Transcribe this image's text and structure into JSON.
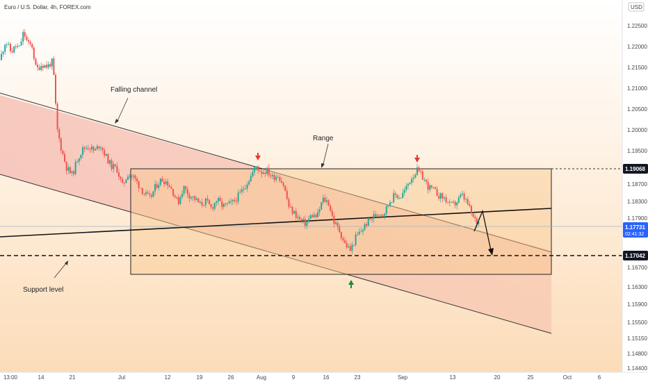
{
  "symbol_title": "Euro / U.S. Dollar, 4h, FOREX.com",
  "currency_badge": "USD",
  "chart_data": {
    "type": "candlestick",
    "x_tick_labels": [
      "13:00",
      "14",
      "21",
      "Jul",
      "12",
      "19",
      "26",
      "Aug",
      "9",
      "16",
      "23",
      "Sep",
      "13",
      "20",
      "25",
      "Oct",
      "6"
    ],
    "y_tick_labels": [
      "1.22500",
      "1.22000",
      "1.21500",
      "1.21000",
      "1.20500",
      "1.20000",
      "1.19500",
      "1.18700",
      "1.18300",
      "1.17900",
      "1.16700",
      "1.16300",
      "1.15900",
      "1.15500",
      "1.15150",
      "1.14800",
      "1.14400"
    ],
    "ylim": [
      1.144,
      1.228
    ],
    "path": [
      [
        0,
        1.2145
      ],
      [
        8,
        1.2188
      ],
      [
        16,
        1.2162
      ],
      [
        22,
        1.2175
      ],
      [
        28,
        1.2172
      ],
      [
        34,
        1.2208
      ],
      [
        40,
        1.218
      ],
      [
        46,
        1.2178
      ],
      [
        52,
        1.2122
      ],
      [
        60,
        1.2135
      ],
      [
        68,
        1.213
      ],
      [
        76,
        1.2142
      ],
      [
        82,
        1.199
      ],
      [
        88,
        1.1945
      ],
      [
        96,
        1.19
      ],
      [
        104,
        1.1885
      ],
      [
        112,
        1.1925
      ],
      [
        120,
        1.1945
      ],
      [
        128,
        1.195
      ],
      [
        136,
        1.1938
      ],
      [
        144,
        1.1955
      ],
      [
        152,
        1.1928
      ],
      [
        160,
        1.1905
      ],
      [
        168,
        1.19
      ],
      [
        176,
        1.186
      ],
      [
        184,
        1.1888
      ],
      [
        192,
        1.188
      ],
      [
        200,
        1.1862
      ],
      [
        208,
        1.1842
      ],
      [
        216,
        1.1832
      ],
      [
        224,
        1.186
      ],
      [
        232,
        1.1875
      ],
      [
        240,
        1.187
      ],
      [
        248,
        1.185
      ],
      [
        256,
        1.1822
      ],
      [
        264,
        1.1858
      ],
      [
        272,
        1.184
      ],
      [
        280,
        1.1832
      ],
      [
        288,
        1.1818
      ],
      [
        296,
        1.1826
      ],
      [
        304,
        1.181
      ],
      [
        312,
        1.183
      ],
      [
        320,
        1.1815
      ],
      [
        328,
        1.1818
      ],
      [
        336,
        1.1824
      ],
      [
        344,
        1.184
      ],
      [
        352,
        1.186
      ],
      [
        360,
        1.188
      ],
      [
        368,
        1.1905
      ],
      [
        376,
        1.1892
      ],
      [
        384,
        1.1895
      ],
      [
        392,
        1.188
      ],
      [
        400,
        1.1885
      ],
      [
        408,
        1.1862
      ],
      [
        416,
        1.181
      ],
      [
        424,
        1.1798
      ],
      [
        432,
        1.1782
      ],
      [
        440,
        1.1775
      ],
      [
        448,
        1.1795
      ],
      [
        456,
        1.179
      ],
      [
        464,
        1.183
      ],
      [
        472,
        1.1825
      ],
      [
        480,
        1.178
      ],
      [
        488,
        1.176
      ],
      [
        496,
        1.173
      ],
      [
        504,
        1.1715
      ],
      [
        512,
        1.1745
      ],
      [
        520,
        1.176
      ],
      [
        528,
        1.1778
      ],
      [
        536,
        1.179
      ],
      [
        544,
        1.18
      ],
      [
        552,
        1.1798
      ],
      [
        560,
        1.1825
      ],
      [
        568,
        1.184
      ],
      [
        576,
        1.1835
      ],
      [
        584,
        1.1855
      ],
      [
        592,
        1.188
      ],
      [
        600,
        1.1895
      ],
      [
        608,
        1.188
      ],
      [
        616,
        1.1858
      ],
      [
        624,
        1.185
      ],
      [
        632,
        1.1838
      ],
      [
        640,
        1.1832
      ],
      [
        648,
        1.1815
      ],
      [
        656,
        1.1822
      ],
      [
        664,
        1.184
      ],
      [
        672,
        1.1822
      ],
      [
        680,
        1.179
      ],
      [
        686,
        1.1778
      ],
      [
        690,
        1.178
      ]
    ],
    "price_labels": {
      "range_top": "1.19068",
      "current": "1.17731",
      "countdown": "02:41:32",
      "support": "1.17042"
    }
  },
  "annotations": {
    "falling_channel": "Falling channel",
    "range": "Range",
    "support_level": "Support level"
  },
  "colors": {
    "bull": "#26a69a",
    "bear": "#ef5350",
    "channel_fill": "#f6c9b7",
    "range_fill": "#f7ce9d",
    "current_price": "#2962ff",
    "label_dark": "#131722"
  }
}
